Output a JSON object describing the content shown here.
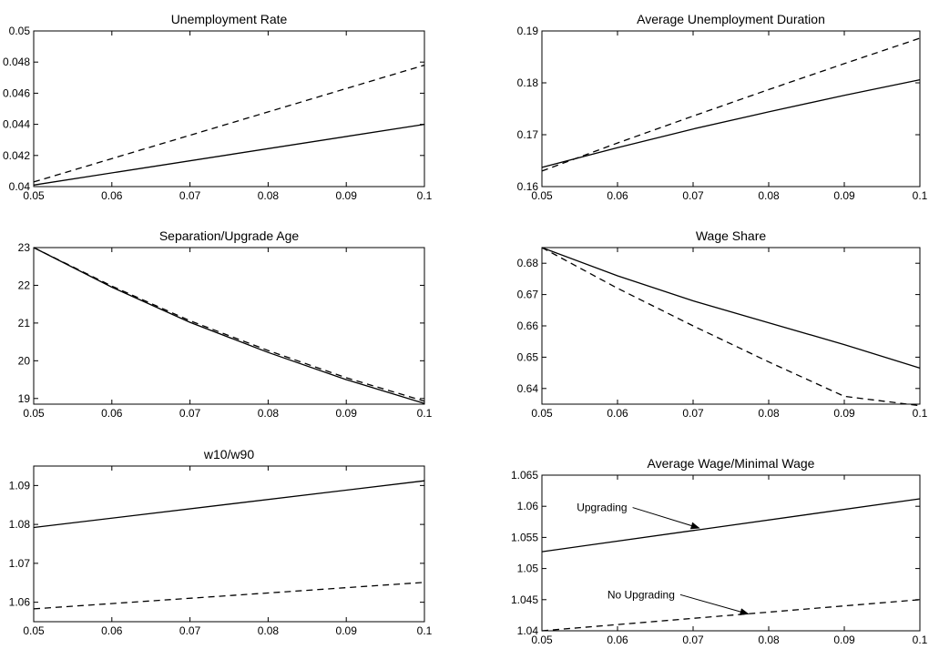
{
  "chart_data": [
    {
      "type": "line",
      "title": "Unemployment Rate",
      "xlim": [
        0.05,
        0.1
      ],
      "ylim": [
        0.04,
        0.05
      ],
      "xticks": [
        0.05,
        0.06,
        0.07,
        0.08,
        0.09,
        0.1
      ],
      "xticklabels": [
        "0.05",
        "0.06",
        "0.07",
        "0.08",
        "0.09",
        "0.1"
      ],
      "yticks": [
        0.04,
        0.042,
        0.044,
        0.046,
        0.048,
        0.05
      ],
      "yticklabels": [
        "0.04",
        "0.042",
        "0.044",
        "0.046",
        "0.048",
        "0.05"
      ],
      "x": [
        0.05,
        0.1
      ],
      "series": [
        {
          "style": "solid",
          "values": [
            0.0401,
            0.044
          ]
        },
        {
          "style": "dashed",
          "values": [
            0.0403,
            0.0478
          ]
        }
      ],
      "annotations": []
    },
    {
      "type": "line",
      "title": "Average Unemployment Duration",
      "xlim": [
        0.05,
        0.1
      ],
      "ylim": [
        0.16,
        0.19
      ],
      "xticks": [
        0.05,
        0.06,
        0.07,
        0.08,
        0.09,
        0.1
      ],
      "xticklabels": [
        "0.05",
        "0.06",
        "0.07",
        "0.08",
        "0.09",
        "0.1"
      ],
      "yticks": [
        0.16,
        0.17,
        0.18,
        0.19
      ],
      "yticklabels": [
        "0.16",
        "0.17",
        "0.18",
        "0.19"
      ],
      "x": [
        0.05,
        0.06,
        0.07,
        0.08,
        0.09,
        0.1
      ],
      "series": [
        {
          "style": "solid",
          "values": [
            0.1637,
            0.1675,
            0.1711,
            0.1744,
            0.1776,
            0.1806
          ]
        },
        {
          "style": "dashed",
          "values": [
            0.163,
            0.1684,
            0.1736,
            0.1787,
            0.1837,
            0.1886
          ]
        }
      ],
      "annotations": []
    },
    {
      "type": "line",
      "title": "Separation/Upgrade Age",
      "xlim": [
        0.05,
        0.1
      ],
      "ylim": [
        18.85,
        23
      ],
      "xticks": [
        0.05,
        0.06,
        0.07,
        0.08,
        0.09,
        0.1
      ],
      "xticklabels": [
        "0.05",
        "0.06",
        "0.07",
        "0.08",
        "0.09",
        "0.1"
      ],
      "yticks": [
        19,
        20,
        21,
        22,
        23
      ],
      "yticklabels": [
        "19",
        "20",
        "21",
        "22",
        "23"
      ],
      "x": [
        0.05,
        0.06,
        0.07,
        0.08,
        0.09,
        0.1
      ],
      "series": [
        {
          "style": "solid",
          "values": [
            23.0,
            21.95,
            21.02,
            20.22,
            19.5,
            18.87
          ]
        },
        {
          "style": "dashed",
          "values": [
            23.0,
            21.98,
            21.06,
            20.27,
            19.55,
            18.93
          ]
        }
      ],
      "annotations": []
    },
    {
      "type": "line",
      "title": "Wage Share",
      "xlim": [
        0.05,
        0.1
      ],
      "ylim": [
        0.635,
        0.685
      ],
      "xticks": [
        0.05,
        0.06,
        0.07,
        0.08,
        0.09,
        0.1
      ],
      "xticklabels": [
        "0.05",
        "0.06",
        "0.07",
        "0.08",
        "0.09",
        "0.1"
      ],
      "yticks": [
        0.64,
        0.65,
        0.66,
        0.67,
        0.68
      ],
      "yticklabels": [
        "0.64",
        "0.65",
        "0.66",
        "0.67",
        "0.68"
      ],
      "x": [
        0.05,
        0.06,
        0.07,
        0.08,
        0.09,
        0.1
      ],
      "series": [
        {
          "style": "solid",
          "values": [
            0.685,
            0.676,
            0.668,
            0.661,
            0.654,
            0.6465
          ]
        },
        {
          "style": "dashed",
          "values": [
            0.685,
            0.672,
            0.66,
            0.6485,
            0.6375,
            0.6345
          ]
        }
      ],
      "annotations": []
    },
    {
      "type": "line",
      "title": "w10/w90",
      "xlim": [
        0.05,
        0.1
      ],
      "ylim": [
        1.055,
        1.095
      ],
      "xticks": [
        0.05,
        0.06,
        0.07,
        0.08,
        0.09,
        0.1
      ],
      "xticklabels": [
        "0.05",
        "0.06",
        "0.07",
        "0.08",
        "0.09",
        "0.1"
      ],
      "yticks": [
        1.06,
        1.07,
        1.08,
        1.09
      ],
      "yticklabels": [
        "1.06",
        "1.07",
        "1.08",
        "1.09"
      ],
      "x": [
        0.05,
        0.1
      ],
      "series": [
        {
          "style": "solid",
          "values": [
            1.0792,
            1.0912
          ]
        },
        {
          "style": "dashed",
          "values": [
            1.0583,
            1.0651
          ]
        }
      ],
      "annotations": []
    },
    {
      "type": "line",
      "title": "Average Wage/Minimal Wage",
      "xlim": [
        0.05,
        0.1
      ],
      "ylim": [
        1.04,
        1.065
      ],
      "xticks": [
        0.05,
        0.06,
        0.07,
        0.08,
        0.09,
        0.1
      ],
      "xticklabels": [
        "0.05",
        "0.06",
        "0.07",
        "0.08",
        "0.09",
        "0.1"
      ],
      "yticks": [
        1.04,
        1.045,
        1.05,
        1.055,
        1.06,
        1.065
      ],
      "yticklabels": [
        "1.04",
        "1.045",
        "1.05",
        "1.055",
        "1.06",
        "1.065"
      ],
      "x": [
        0.05,
        0.1
      ],
      "series": [
        {
          "style": "solid",
          "values": [
            1.0527,
            1.0612
          ]
        },
        {
          "style": "dashed",
          "values": [
            1.04,
            1.045
          ]
        }
      ],
      "annotations": [
        {
          "text": "Upgrading",
          "from": [
            0.062,
            1.0598
          ],
          "to": [
            0.0708,
            1.0565
          ]
        },
        {
          "text": "No Upgrading",
          "from": [
            0.0683,
            1.0458
          ],
          "to": [
            0.0773,
            1.0427
          ]
        }
      ]
    }
  ]
}
